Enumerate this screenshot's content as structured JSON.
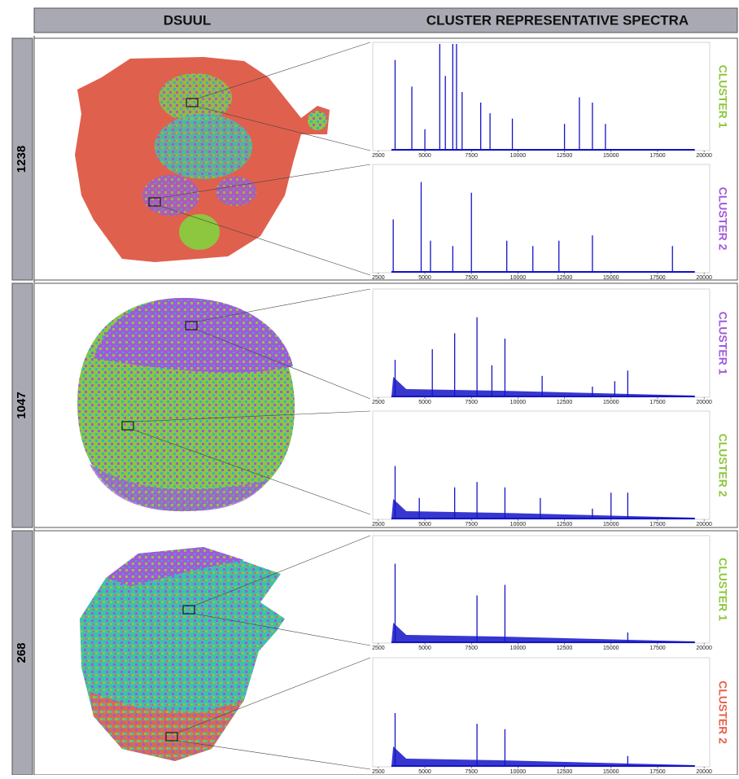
{
  "header": {
    "left": "DSUUL",
    "right": "CLUSTER REPRESENTATIVE SPECTRA"
  },
  "spectrum_axis": {
    "xlim": [
      2200,
      20300
    ],
    "xticks": [
      2500,
      5000,
      7500,
      10000,
      12500,
      15000,
      17500,
      20000
    ]
  },
  "rows": [
    {
      "label": "1238",
      "spectra": [
        {
          "cluster": "CLUSTER 1",
          "color": "#8dc63f",
          "peaks": [
            [
              3400,
              0.85
            ],
            [
              4300,
              0.6
            ],
            [
              5000,
              0.2
            ],
            [
              5800,
              1
            ],
            [
              6100,
              0.7
            ],
            [
              6500,
              1
            ],
            [
              6700,
              1
            ],
            [
              7000,
              0.55
            ],
            [
              8000,
              0.45
            ],
            [
              8500,
              0.35
            ],
            [
              9700,
              0.3
            ],
            [
              12500,
              0.25
            ],
            [
              13300,
              0.5
            ],
            [
              14000,
              0.45
            ],
            [
              14700,
              0.25
            ]
          ]
        },
        {
          "cluster": "CLUSTER 2",
          "color": "#a259d9",
          "peaks": [
            [
              3300,
              0.5
            ],
            [
              4800,
              0.85
            ],
            [
              5300,
              0.3
            ],
            [
              6500,
              0.25
            ],
            [
              7500,
              0.75
            ],
            [
              9400,
              0.3
            ],
            [
              10800,
              0.25
            ],
            [
              12200,
              0.3
            ],
            [
              14000,
              0.35
            ],
            [
              18300,
              0.25
            ]
          ]
        }
      ]
    },
    {
      "label": "1047",
      "spectra": [
        {
          "cluster": "CLUSTER 1",
          "color": "#a259d9",
          "peaks": [
            [
              3400,
              0.35
            ],
            [
              5400,
              0.45
            ],
            [
              6600,
              0.6
            ],
            [
              7800,
              0.75
            ],
            [
              8600,
              0.3
            ],
            [
              9300,
              0.55
            ],
            [
              11300,
              0.2
            ],
            [
              14000,
              0.1
            ],
            [
              15200,
              0.15
            ],
            [
              15900,
              0.25
            ]
          ]
        },
        {
          "cluster": "CLUSTER 2",
          "color": "#8dc63f",
          "peaks": [
            [
              3400,
              0.5
            ],
            [
              4700,
              0.2
            ],
            [
              6600,
              0.3
            ],
            [
              7800,
              0.35
            ],
            [
              9300,
              0.3
            ],
            [
              11200,
              0.2
            ],
            [
              14000,
              0.1
            ],
            [
              15000,
              0.25
            ],
            [
              15900,
              0.25
            ]
          ]
        }
      ]
    },
    {
      "label": "268",
      "spectra": [
        {
          "cluster": "CLUSTER 1",
          "color": "#8dc63f",
          "peaks": [
            [
              3400,
              0.75
            ],
            [
              7800,
              0.45
            ],
            [
              9300,
              0.55
            ],
            [
              15900,
              0.1
            ]
          ]
        },
        {
          "cluster": "CLUSTER 2",
          "color": "#e8604c",
          "peaks": [
            [
              3400,
              0.5
            ],
            [
              7800,
              0.4
            ],
            [
              9300,
              0.35
            ],
            [
              15900,
              0.1
            ]
          ]
        }
      ]
    }
  ]
}
